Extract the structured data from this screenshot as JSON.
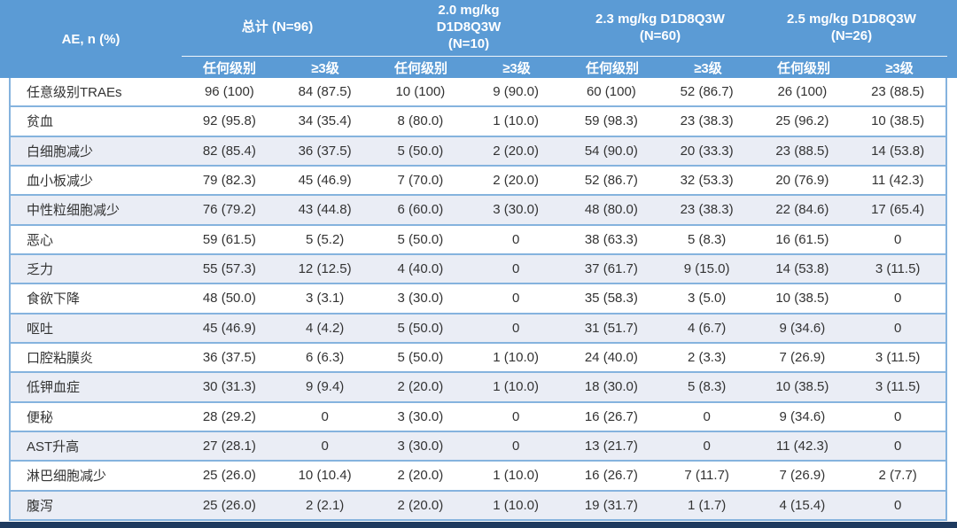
{
  "chart_data": {
    "type": "table",
    "corner_label": "AE, n (%)",
    "column_groups": [
      {
        "label": "总计 (N=96)",
        "subcolumns": [
          "任何级别",
          "≥3级"
        ]
      },
      {
        "label": "2.0 mg/kg\nD1D8Q3W\n(N=10)",
        "subcolumns": [
          "任何级别",
          "≥3级"
        ]
      },
      {
        "label": "2.3 mg/kg D1D8Q3W\n(N=60)",
        "subcolumns": [
          "任何级别",
          "≥3级"
        ]
      },
      {
        "label": "2.5 mg/kg D1D8Q3W\n(N=26)",
        "subcolumns": [
          "任何级别",
          "≥3级"
        ]
      }
    ],
    "rows": [
      {
        "label": "任意级别TRAEs",
        "shaded": false,
        "values": [
          "96 (100)",
          "84 (87.5)",
          "10 (100)",
          "9 (90.0)",
          "60 (100)",
          "52 (86.7)",
          "26 (100)",
          "23 (88.5)"
        ]
      },
      {
        "label": "贫血",
        "shaded": false,
        "values": [
          "92 (95.8)",
          "34 (35.4)",
          "8 (80.0)",
          "1 (10.0)",
          "59 (98.3)",
          "23 (38.3)",
          "25 (96.2)",
          "10 (38.5)"
        ]
      },
      {
        "label": "白细胞减少",
        "shaded": true,
        "values": [
          "82 (85.4)",
          "36 (37.5)",
          "5 (50.0)",
          "2 (20.0)",
          "54 (90.0)",
          "20 (33.3)",
          "23 (88.5)",
          "14 (53.8)"
        ]
      },
      {
        "label": "血小板减少",
        "shaded": false,
        "values": [
          "79 (82.3)",
          "45 (46.9)",
          "7 (70.0)",
          "2 (20.0)",
          "52 (86.7)",
          "32 (53.3)",
          "20 (76.9)",
          "11 (42.3)"
        ]
      },
      {
        "label": "中性粒细胞减少",
        "shaded": true,
        "values": [
          "76 (79.2)",
          "43 (44.8)",
          "6 (60.0)",
          "3 (30.0)",
          "48 (80.0)",
          "23 (38.3)",
          "22 (84.6)",
          "17 (65.4)"
        ]
      },
      {
        "label": "恶心",
        "shaded": false,
        "values": [
          "59 (61.5)",
          "5 (5.2)",
          "5 (50.0)",
          "0",
          "38 (63.3)",
          "5 (8.3)",
          "16 (61.5)",
          "0"
        ]
      },
      {
        "label": "乏力",
        "shaded": true,
        "values": [
          "55 (57.3)",
          "12 (12.5)",
          "4 (40.0)",
          "0",
          "37 (61.7)",
          "9 (15.0)",
          "14 (53.8)",
          "3 (11.5)"
        ]
      },
      {
        "label": "食欲下降",
        "shaded": false,
        "values": [
          "48 (50.0)",
          "3 (3.1)",
          "3 (30.0)",
          "0",
          "35 (58.3)",
          "3 (5.0)",
          "10 (38.5)",
          "0"
        ]
      },
      {
        "label": "呕吐",
        "shaded": true,
        "values": [
          "45 (46.9)",
          "4 (4.2)",
          "5 (50.0)",
          "0",
          "31 (51.7)",
          "4 (6.7)",
          "9 (34.6)",
          "0"
        ]
      },
      {
        "label": "口腔粘膜炎",
        "shaded": false,
        "values": [
          "36 (37.5)",
          "6 (6.3)",
          "5 (50.0)",
          "1 (10.0)",
          "24 (40.0)",
          "2 (3.3)",
          "7 (26.9)",
          "3 (11.5)"
        ]
      },
      {
        "label": "低钾血症",
        "shaded": true,
        "values": [
          "30 (31.3)",
          "9 (9.4)",
          "2 (20.0)",
          "1 (10.0)",
          "18 (30.0)",
          "5 (8.3)",
          "10 (38.5)",
          "3 (11.5)"
        ]
      },
      {
        "label": "便秘",
        "shaded": false,
        "values": [
          "28 (29.2)",
          "0",
          "3 (30.0)",
          "0",
          "16 (26.7)",
          "0",
          "9 (34.6)",
          "0"
        ]
      },
      {
        "label": "AST升高",
        "shaded": true,
        "values": [
          "27 (28.1)",
          "0",
          "3 (30.0)",
          "0",
          "13 (21.7)",
          "0",
          "11 (42.3)",
          "0"
        ]
      },
      {
        "label": "淋巴细胞减少",
        "shaded": false,
        "values": [
          "25 (26.0)",
          "10 (10.4)",
          "2 (20.0)",
          "1 (10.0)",
          "16 (26.7)",
          "7 (11.7)",
          "7 (26.9)",
          "2 (7.7)"
        ]
      },
      {
        "label": "腹泻",
        "shaded": true,
        "values": [
          "25 (26.0)",
          "2 (2.1)",
          "2 (20.0)",
          "1 (10.0)",
          "19 (31.7)",
          "1 (1.7)",
          "4 (15.4)",
          "0"
        ]
      }
    ]
  },
  "colors": {
    "header_blue": "#5B9BD5",
    "header_text": "#FFFFFF",
    "grid_blue": "#85B3DE",
    "row_stripe": "#EAEDF5",
    "body_text": "#333333",
    "bottom_bar": "#1E3A5F"
  }
}
